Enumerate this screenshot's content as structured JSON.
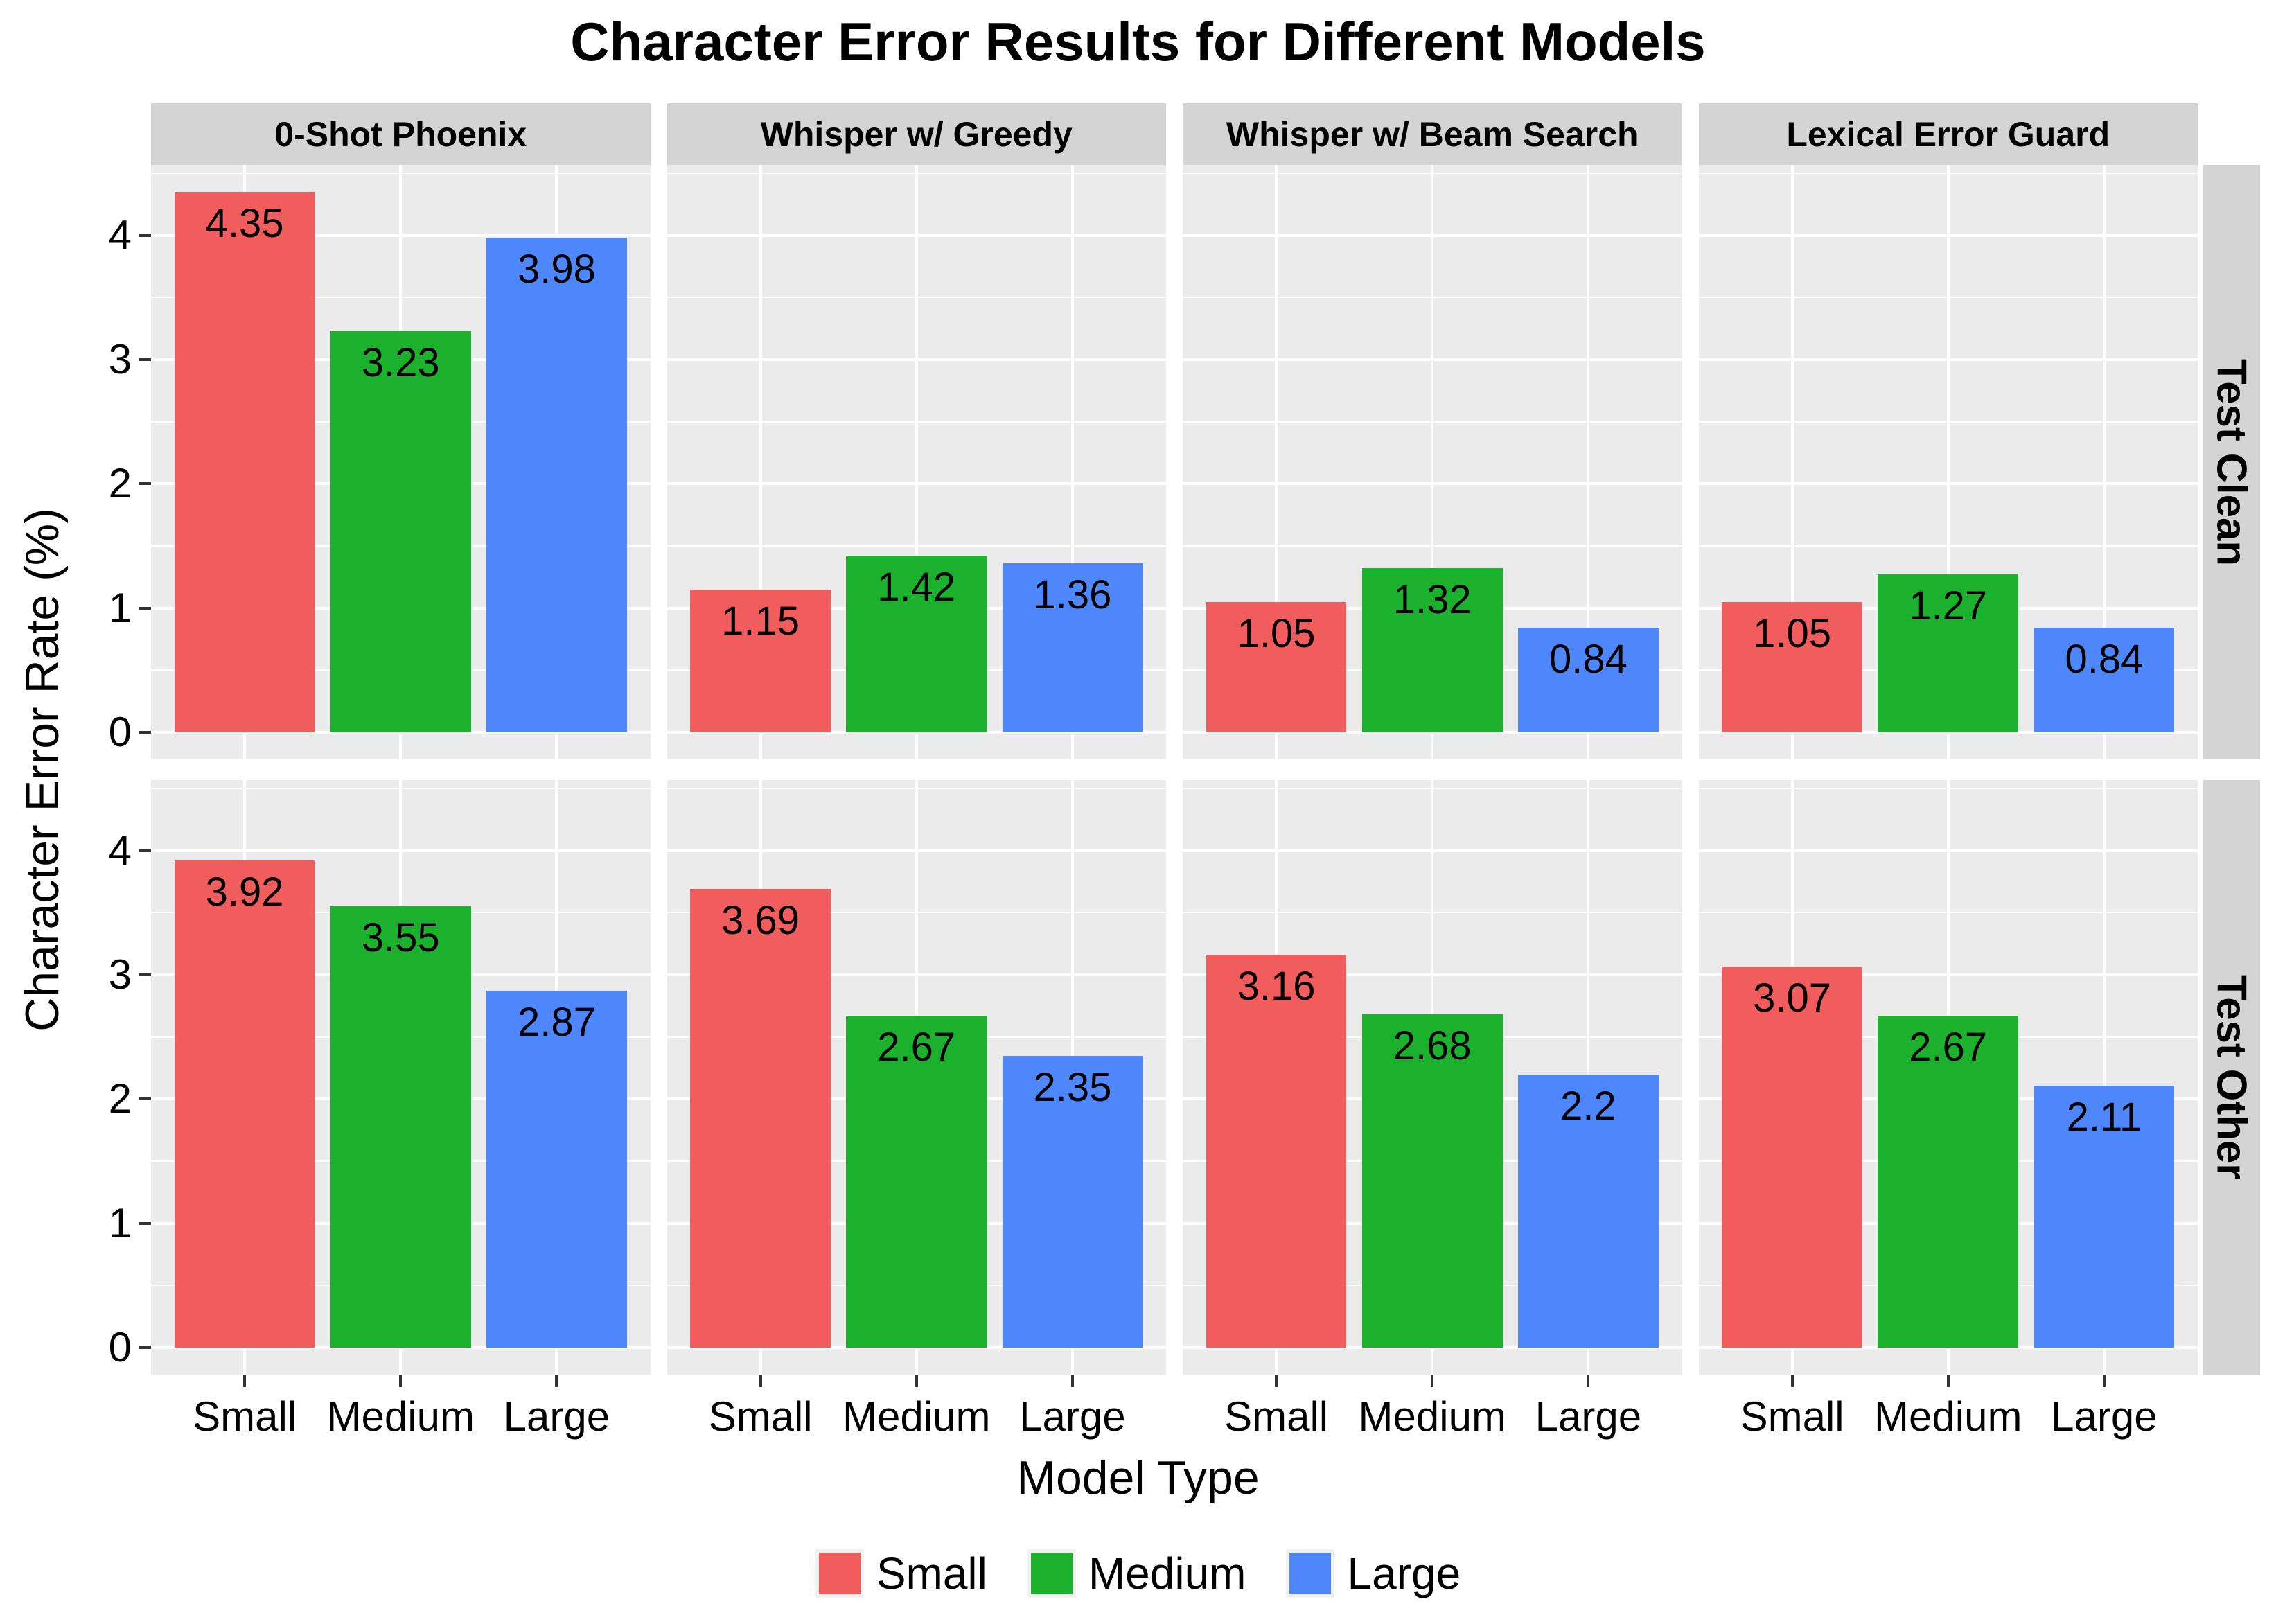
{
  "chart_data": {
    "type": "bar",
    "title": "Character Error Results for Different Models",
    "xlabel": "Model Type",
    "ylabel": "Character Error Rate (%)",
    "categories": [
      "Small",
      "Medium",
      "Large"
    ],
    "col_facets": [
      "0-Shot Phoenix",
      "Whisper w/ Greedy",
      "Whisper w/ Beam Search",
      "Lexical Error Guard"
    ],
    "row_facets": [
      "Test Clean",
      "Test Other"
    ],
    "y_ticks": [
      0,
      1,
      2,
      3,
      4
    ],
    "ylim": [
      -0.2175,
      4.5675
    ],
    "grid": "on",
    "legend_position": "bottom",
    "legend_labels": [
      "Small",
      "Medium",
      "Large"
    ],
    "series_colors": {
      "Small": "#F15C5C",
      "Medium": "#1CB12C",
      "Large": "#4E86FB"
    },
    "panel_bg": "#EBEBEB",
    "strip_bg": "#D4D4D4",
    "gridline_color": "#FFFFFF",
    "panels": [
      {
        "row": "Test Clean",
        "col": "0-Shot Phoenix",
        "values": [
          4.35,
          3.23,
          3.98
        ]
      },
      {
        "row": "Test Clean",
        "col": "Whisper w/ Greedy",
        "values": [
          1.15,
          1.42,
          1.36
        ]
      },
      {
        "row": "Test Clean",
        "col": "Whisper w/ Beam Search",
        "values": [
          1.05,
          1.32,
          0.84
        ]
      },
      {
        "row": "Test Clean",
        "col": "Lexical Error Guard",
        "values": [
          1.05,
          1.27,
          0.84
        ]
      },
      {
        "row": "Test Other",
        "col": "0-Shot Phoenix",
        "values": [
          3.92,
          3.55,
          2.87
        ]
      },
      {
        "row": "Test Other",
        "col": "Whisper w/ Greedy",
        "values": [
          3.69,
          2.67,
          2.35
        ]
      },
      {
        "row": "Test Other",
        "col": "Whisper w/ Beam Search",
        "values": [
          3.16,
          2.68,
          2.2
        ]
      },
      {
        "row": "Test Other",
        "col": "Lexical Error Guard",
        "values": [
          3.07,
          2.67,
          2.11
        ]
      }
    ]
  }
}
